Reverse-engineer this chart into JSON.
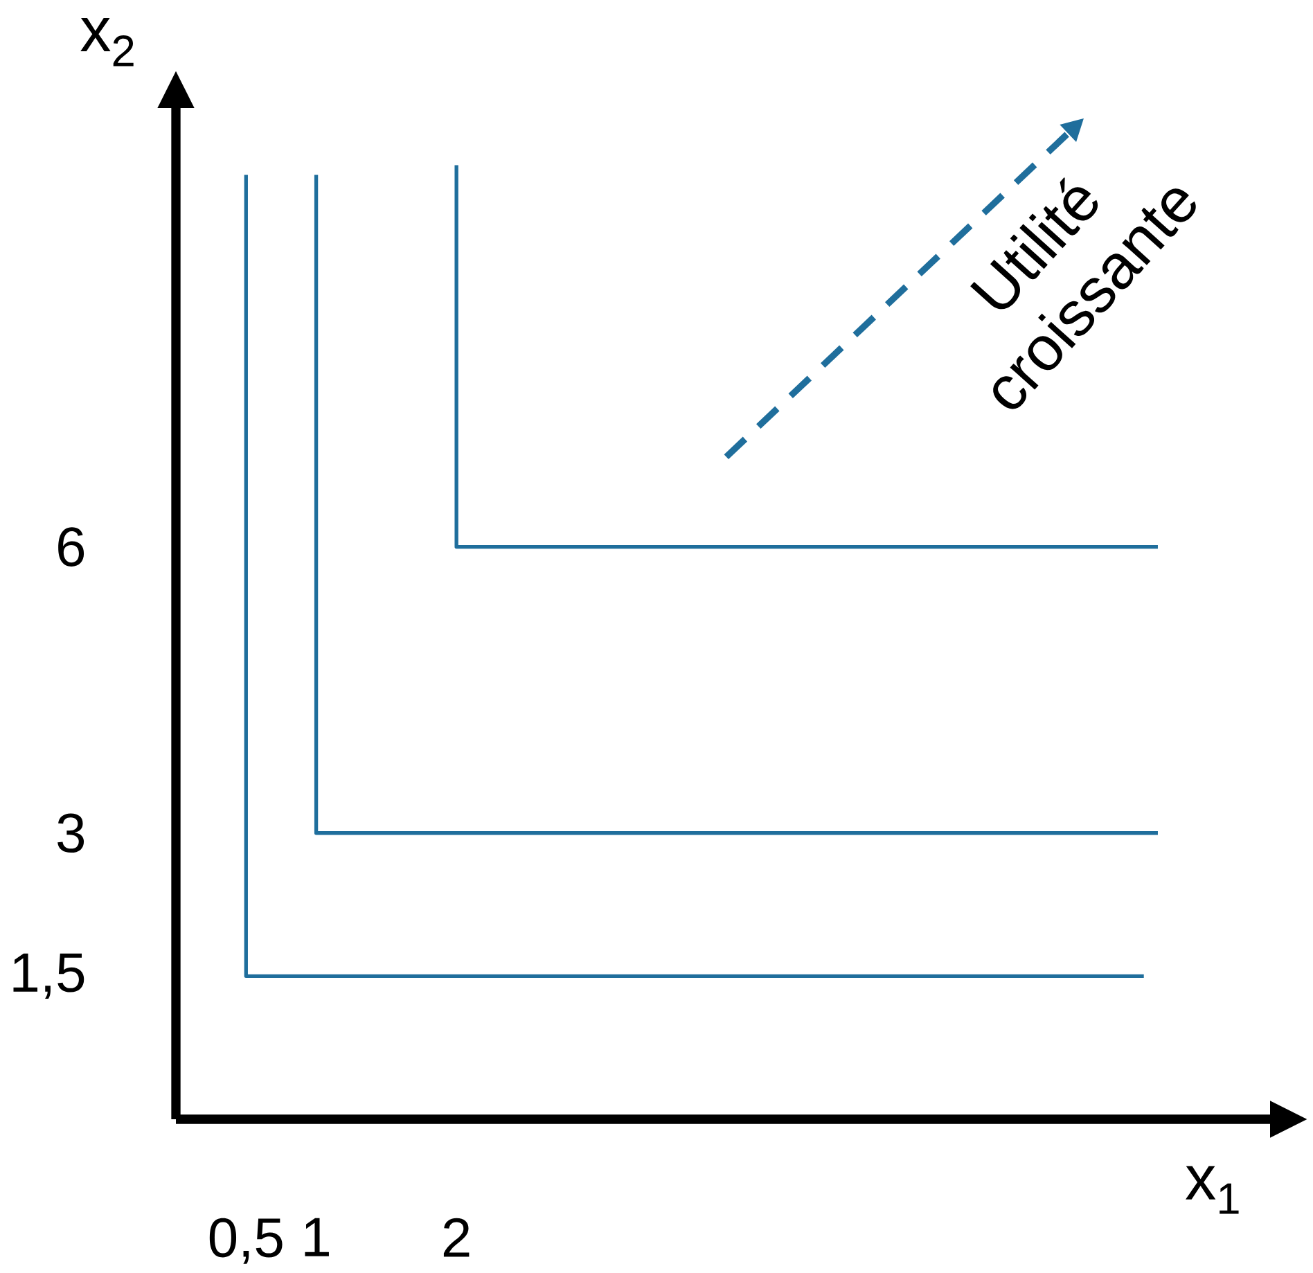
{
  "chart_data": {
    "type": "line",
    "xlabel": "x$_{1}$",
    "ylabel": "x$_{2}$",
    "series": [
      {
        "color": "#1f6e9c",
        "x": [
          0.5,
          0.5,
          6.9
        ],
        "values": [
          9.9,
          1.5,
          1.5
        ]
      },
      {
        "color": "#1f6e9c",
        "x": [
          1,
          1,
          7
        ],
        "values": [
          9.9,
          3,
          3
        ]
      },
      {
        "color": "#1f6e9c",
        "x": [
          2,
          2,
          7
        ],
        "values": [
          10,
          6,
          6
        ]
      }
    ],
    "xlim": [
      0,
      7.8
    ],
    "ylim": [
      0,
      10.6
    ],
    "xticks": [
      {
        "value": 0.5,
        "label": "0,5"
      },
      1,
      2
    ],
    "yticks": [
      {
        "value": 1.5,
        "label": "1,5"
      },
      3,
      6
    ],
    "annotations": [
      "Utilité",
      "croissante"
    ],
    "grid": false,
    "marker": "none",
    "line_style": "solid"
  }
}
